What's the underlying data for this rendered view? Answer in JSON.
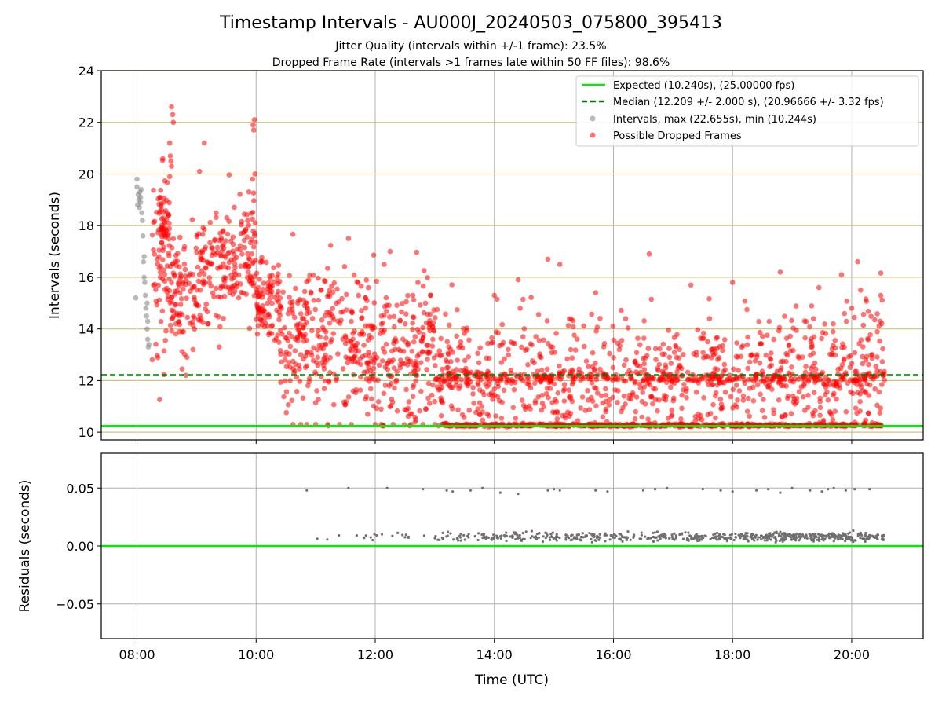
{
  "chart_data": {
    "type": "scatter",
    "title": "Timestamp Intervals - AU000J_20240503_075800_395413",
    "subtitle_lines": [
      "Jitter Quality (intervals within +/-1 frame): 23.5%",
      "Dropped Frame Rate (intervals >1 frames late within 50 FF files): 98.6%"
    ],
    "xlabel": "Time (UTC)",
    "x_tick_labels": [
      "08:00",
      "10:00",
      "12:00",
      "14:00",
      "16:00",
      "18:00",
      "20:00"
    ],
    "x_tick_hours": [
      8,
      10,
      12,
      14,
      16,
      18,
      20
    ],
    "xlim_hours": [
      7.4,
      21.2
    ],
    "grid": true,
    "legend_position": "top-right",
    "colors": {
      "expected": "#00ee00",
      "median": "#007700",
      "intervals": "#808080",
      "dropped": "#ff0000",
      "hgrid": "#d4c07a",
      "vgrid": "#b0b0b0",
      "residual_points": "#707070"
    },
    "top_panel": {
      "ylabel": "Intervals (seconds)",
      "ylim": [
        9.7,
        24
      ],
      "y_tick_values": [
        10,
        12,
        14,
        16,
        18,
        20,
        22,
        24
      ],
      "y_tick_labels": [
        "10",
        "12",
        "14",
        "16",
        "18",
        "20",
        "22",
        "24"
      ],
      "expected_interval_s": 10.24,
      "median_interval_s": 12.209,
      "legend": [
        "Expected (10.240s), (25.00000 fps)",
        "Median (12.209 +/- 2.000 s), (20.96666 +/- 3.32 fps)",
        "Intervals, max (22.655s), min (10.244s)",
        "Possible Dropped Frames"
      ],
      "intervals_max_s": 22.655,
      "intervals_min_s": 10.244,
      "series": [
        {
          "name": "Intervals, max (22.655s), min (10.244s)",
          "points": [
            [
              8.0,
              19.8
            ],
            [
              8.0,
              19.5
            ],
            [
              8.02,
              19.2
            ],
            [
              8.03,
              19.0
            ],
            [
              8.04,
              18.7
            ],
            [
              8.05,
              19.3
            ],
            [
              8.06,
              18.9
            ],
            [
              8.07,
              19.4
            ],
            [
              8.08,
              18.5
            ],
            [
              8.09,
              18.2
            ],
            [
              8.1,
              17.6
            ],
            [
              8.11,
              16.6
            ],
            [
              8.12,
              16.0
            ],
            [
              8.13,
              15.8
            ],
            [
              8.14,
              15.3
            ],
            [
              8.15,
              14.8
            ],
            [
              8.16,
              14.5
            ],
            [
              8.17,
              14.0
            ],
            [
              8.18,
              13.6
            ],
            [
              8.19,
              13.3
            ],
            [
              8.17,
              15.0
            ],
            [
              8.18,
              14.3
            ],
            [
              8.2,
              13.4
            ],
            [
              8.12,
              16.8
            ],
            [
              7.98,
              15.2
            ],
            [
              8.01,
              18.8
            ],
            [
              8.06,
              19.1
            ]
          ]
        },
        {
          "name": "Possible Dropped Frames",
          "generated": true,
          "segments": [
            {
              "from": 8.25,
              "to": 8.55,
              "count": 70,
              "mean": 16.5,
              "spread": 1.9
            },
            {
              "from": 8.35,
              "to": 8.55,
              "count": 35,
              "mean": 18.3,
              "spread": 0.5
            },
            {
              "from": 8.55,
              "to": 9.0,
              "count": 90,
              "mean": 15.4,
              "spread": 1.2
            },
            {
              "from": 9.0,
              "to": 9.5,
              "count": 100,
              "mean": 16.4,
              "spread": 1.1
            },
            {
              "from": 9.5,
              "to": 10.0,
              "count": 100,
              "mean": 16.7,
              "spread": 1.1
            },
            {
              "from": 10.0,
              "to": 10.4,
              "count": 90,
              "mean": 15.0,
              "spread": 0.8
            },
            {
              "from": 10.4,
              "to": 11.0,
              "count": 120,
              "mean": 13.7,
              "spread": 1.4
            },
            {
              "from": 11.0,
              "to": 12.0,
              "count": 190,
              "mean": 13.5,
              "spread": 1.4
            },
            {
              "from": 12.0,
              "to": 13.0,
              "count": 180,
              "mean": 13.0,
              "spread": 1.5
            },
            {
              "from": 13.0,
              "to": 14.0,
              "count": 170,
              "mean": 12.2,
              "spread": 1.2
            },
            {
              "from": 14.0,
              "to": 15.0,
              "count": 150,
              "mean": 12.2,
              "spread": 1.3
            },
            {
              "from": 15.0,
              "to": 16.0,
              "count": 150,
              "mean": 12.0,
              "spread": 1.2
            },
            {
              "from": 16.0,
              "to": 17.0,
              "count": 150,
              "mean": 12.1,
              "spread": 1.2
            },
            {
              "from": 17.0,
              "to": 18.0,
              "count": 150,
              "mean": 12.2,
              "spread": 1.2
            },
            {
              "from": 18.0,
              "to": 19.0,
              "count": 150,
              "mean": 12.3,
              "spread": 1.3
            },
            {
              "from": 19.0,
              "to": 20.0,
              "count": 160,
              "mean": 12.3,
              "spread": 1.3
            },
            {
              "from": 20.0,
              "to": 20.55,
              "count": 110,
              "mean": 12.6,
              "spread": 1.4
            }
          ],
          "baseline_band": {
            "from": 13.1,
            "to": 20.55,
            "value": 10.27,
            "count": 520
          },
          "extra_points": [
            [
              8.58,
              22.6
            ],
            [
              8.6,
              22.3
            ],
            [
              8.61,
              22.0
            ],
            [
              8.56,
              20.7
            ],
            [
              8.57,
              20.5
            ],
            [
              8.58,
              20.3
            ],
            [
              8.55,
              21.2
            ],
            [
              8.55,
              19.9
            ],
            [
              9.05,
              20.1
            ],
            [
              9.13,
              21.2
            ],
            [
              9.95,
              21.9
            ],
            [
              9.97,
              22.1
            ],
            [
              9.96,
              21.7
            ],
            [
              9.98,
              20.0
            ],
            [
              9.94,
              19.8
            ],
            [
              8.82,
              12.2
            ],
            [
              8.84,
              12.9
            ],
            [
              9.38,
              13.3
            ],
            [
              11.55,
              17.5
            ],
            [
              12.15,
              16.5
            ],
            [
              12.25,
              17.0
            ],
            [
              14.9,
              16.7
            ],
            [
              15.1,
              16.5
            ],
            [
              15.7,
              15.4
            ],
            [
              16.6,
              16.9
            ],
            [
              18.8,
              16.2
            ],
            [
              20.1,
              16.6
            ],
            [
              17.3,
              15.7
            ],
            [
              18.0,
              15.8
            ],
            [
              19.45,
              15.6
            ],
            [
              20.0,
              14.8
            ],
            [
              20.15,
              15.5
            ],
            [
              14.4,
              15.9
            ],
            [
              14.0,
              15.3
            ],
            [
              10.62,
              10.3
            ],
            [
              10.75,
              10.3
            ],
            [
              10.85,
              10.3
            ],
            [
              11.0,
              10.3
            ],
            [
              11.2,
              10.3
            ],
            [
              11.4,
              10.3
            ],
            [
              11.6,
              10.3
            ],
            [
              12.0,
              10.3
            ],
            [
              12.1,
              10.3
            ],
            [
              12.3,
              10.3
            ],
            [
              12.6,
              10.3
            ],
            [
              12.8,
              10.3
            ],
            [
              13.0,
              10.3
            ]
          ]
        }
      ]
    },
    "bottom_panel": {
      "ylabel": "Residuals (seconds)",
      "ylim": [
        -0.08,
        0.08
      ],
      "y_tick_values": [
        -0.05,
        0.0,
        0.05
      ],
      "y_tick_labels": [
        "−0.05",
        "0.00",
        "0.05"
      ],
      "zero_line": 0,
      "series": [
        {
          "name": "residuals",
          "generated": true,
          "high_points": [
            [
              10.85,
              0.048
            ],
            [
              11.55,
              0.05
            ],
            [
              12.2,
              0.05
            ],
            [
              12.8,
              0.049
            ],
            [
              13.2,
              0.048
            ],
            [
              13.3,
              0.047
            ],
            [
              13.6,
              0.048
            ],
            [
              13.8,
              0.05
            ],
            [
              14.1,
              0.046
            ],
            [
              14.4,
              0.045
            ],
            [
              14.9,
              0.048
            ],
            [
              15.0,
              0.049
            ],
            [
              15.1,
              0.048
            ],
            [
              15.7,
              0.048
            ],
            [
              15.9,
              0.047
            ],
            [
              16.5,
              0.048
            ],
            [
              16.7,
              0.049
            ],
            [
              16.9,
              0.05
            ],
            [
              17.5,
              0.049
            ],
            [
              17.8,
              0.048
            ],
            [
              18.0,
              0.047
            ],
            [
              18.4,
              0.048
            ],
            [
              18.6,
              0.049
            ],
            [
              18.8,
              0.046
            ],
            [
              19.0,
              0.05
            ],
            [
              19.3,
              0.048
            ],
            [
              19.5,
              0.047
            ],
            [
              19.6,
              0.049
            ],
            [
              19.7,
              0.05
            ],
            [
              19.9,
              0.048
            ],
            [
              20.05,
              0.049
            ],
            [
              20.3,
              0.049
            ]
          ],
          "low_band": {
            "from": 10.6,
            "to": 20.55,
            "mean": 0.008,
            "spread": 0.0018,
            "count": 620
          }
        }
      ]
    }
  }
}
